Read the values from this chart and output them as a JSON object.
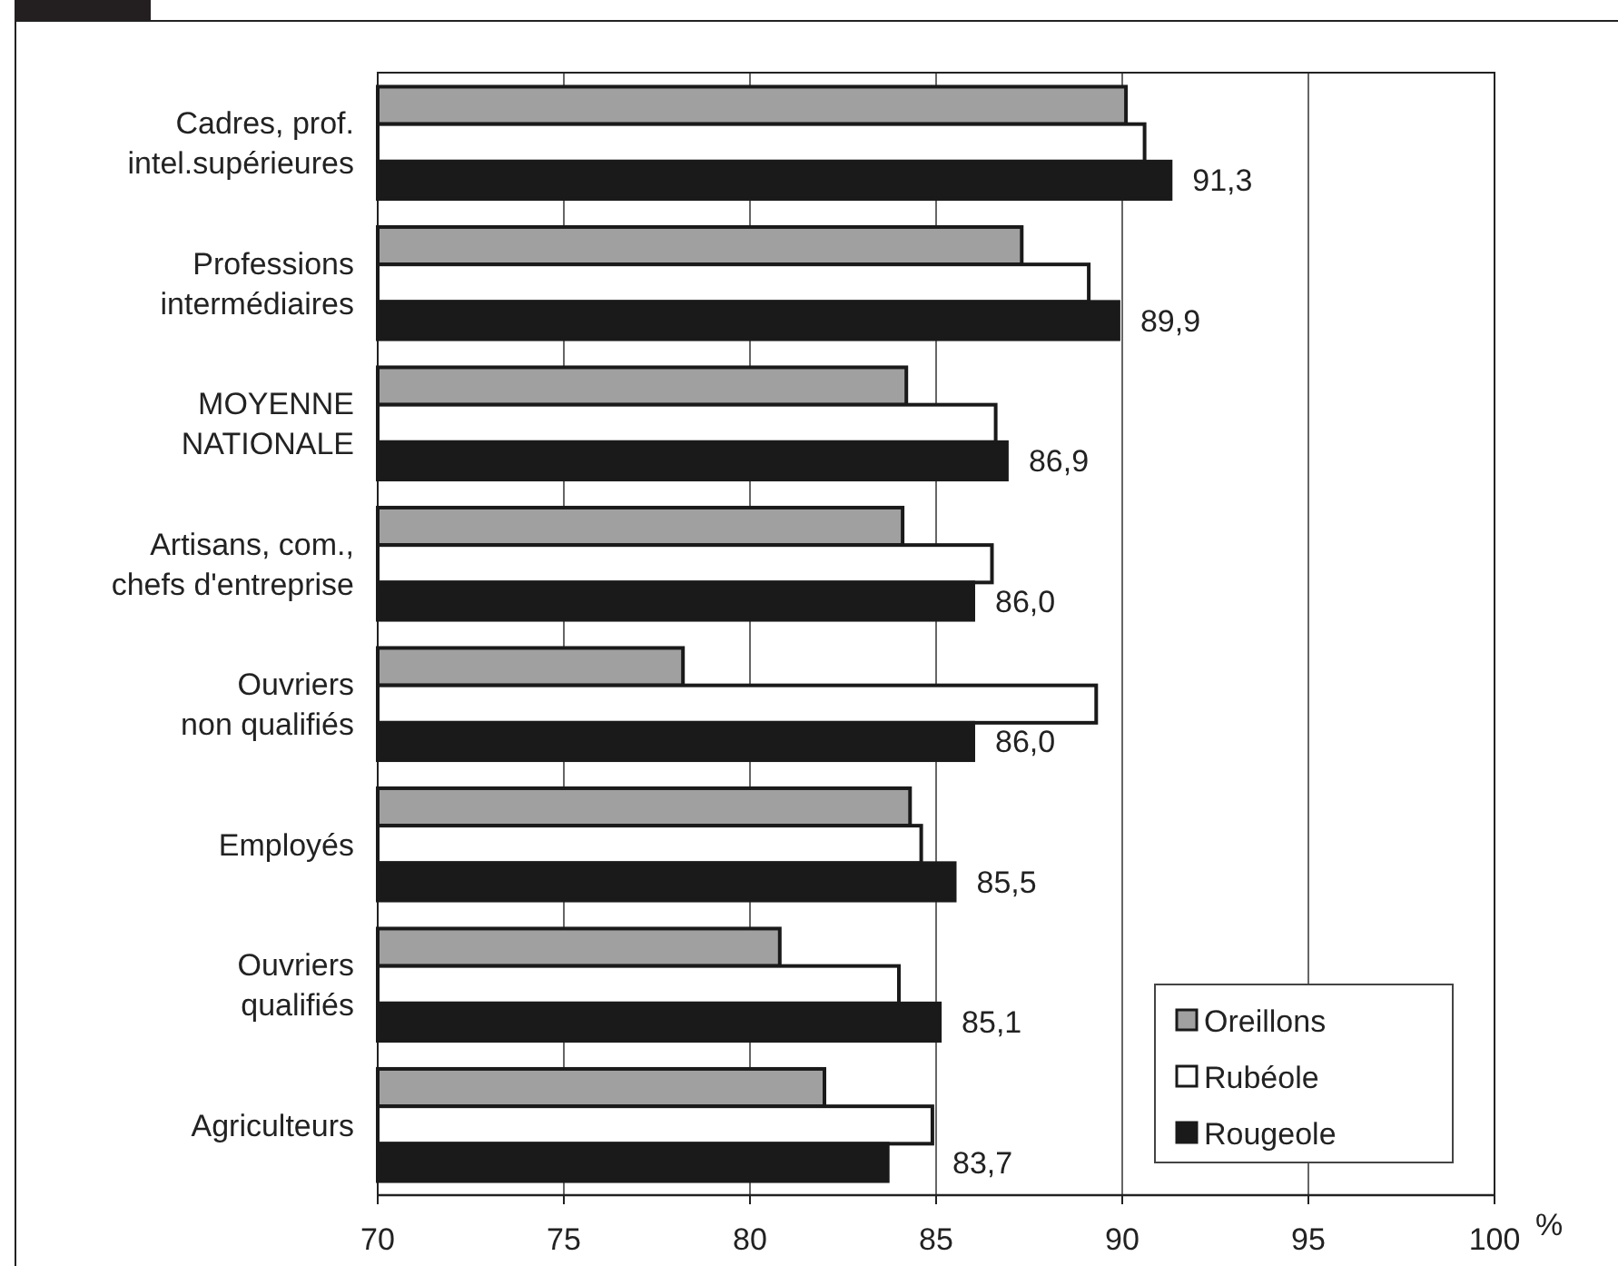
{
  "chart_data": {
    "type": "bar",
    "orientation": "horizontal",
    "xlabel": "%",
    "categories": [
      "Cadres, prof.\nintel.supérieures",
      "Professions\nintermédiaires",
      "MOYENNE\nNATIONALE",
      "Artisans, com.,\nchefs d'entreprise",
      "Ouvriers\nnon qualifiés",
      "Employés",
      "Ouvriers\nqualifiés",
      "Agriculteurs"
    ],
    "series": [
      {
        "name": "Oreillons",
        "color": "#a0a0a0",
        "values": [
          90.1,
          87.3,
          84.2,
          84.1,
          78.2,
          84.3,
          80.8,
          82.0
        ]
      },
      {
        "name": "Rubéole",
        "color": "#ffffff",
        "values": [
          90.6,
          89.1,
          86.6,
          86.5,
          89.3,
          84.6,
          84.0,
          84.9
        ]
      },
      {
        "name": "Rougeole",
        "color": "#1a1a1a",
        "values": [
          91.3,
          89.9,
          86.9,
          86.0,
          86.0,
          85.5,
          85.1,
          83.7
        ],
        "value_labels": [
          "91,3",
          "89,9",
          "86,9",
          "86,0",
          "86,0",
          "85,5",
          "85,1",
          "83,7"
        ]
      }
    ],
    "xlim": [
      70,
      100
    ],
    "xticks": [
      70,
      75,
      80,
      85,
      90,
      95,
      100
    ],
    "grid": "x",
    "legend": "bottom right"
  }
}
